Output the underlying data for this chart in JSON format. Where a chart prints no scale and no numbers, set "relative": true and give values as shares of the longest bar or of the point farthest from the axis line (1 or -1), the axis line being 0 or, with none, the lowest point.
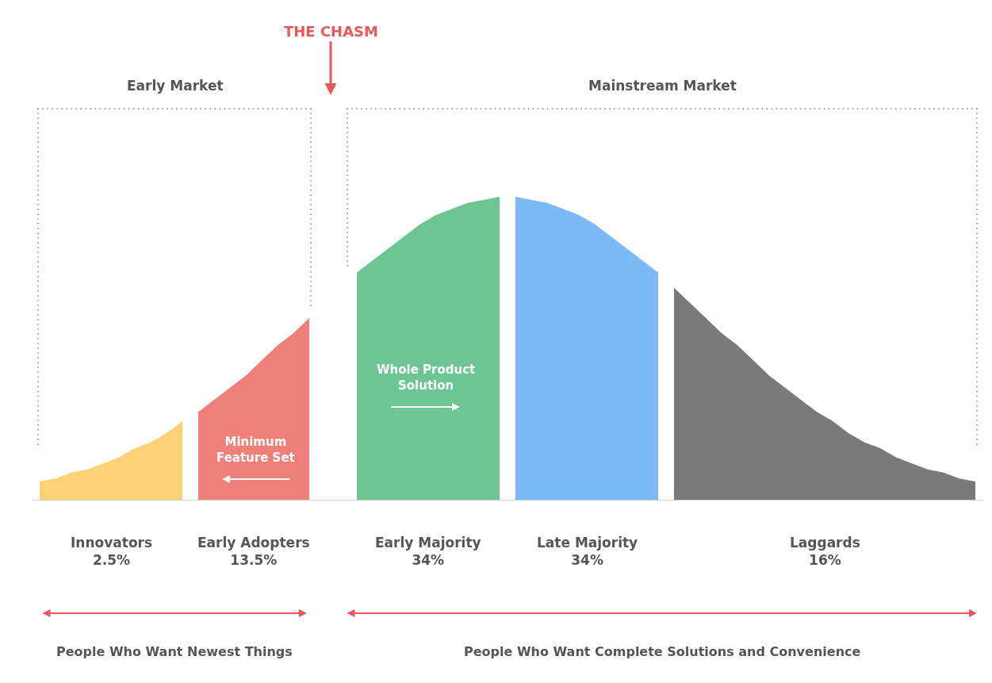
{
  "chart_data": {
    "type": "area",
    "relative": true,
    "legend": false,
    "categories": [
      null,
      null,
      null,
      null,
      null,
      null,
      null,
      null,
      null,
      null,
      null,
      null,
      null,
      null,
      null,
      null,
      null,
      null,
      null,
      null,
      null,
      null,
      null,
      null,
      null,
      null,
      null,
      null,
      null,
      null,
      null,
      null,
      null,
      null,
      null,
      null,
      null,
      null,
      null,
      null,
      null,
      null,
      null,
      null,
      null,
      null,
      null,
      null,
      null,
      null,
      null,
      null,
      null,
      null,
      null,
      null,
      null,
      null,
      null,
      null
    ],
    "series": [
      {
        "name": "Innovators\n2.5%",
        "color": "#fdd175",
        "values": [
          0.06,
          0.07,
          0.09,
          0.1,
          0.12,
          0.14,
          0.17,
          0.19,
          0.22,
          0.26,
          null,
          null,
          null,
          null,
          null,
          null,
          null,
          null,
          null,
          null,
          null,
          null,
          null,
          null,
          null,
          null,
          null,
          null,
          null,
          null,
          null,
          null,
          null,
          null,
          null,
          null,
          null,
          null,
          null,
          null,
          null,
          null,
          null,
          null,
          null,
          null,
          null,
          null,
          null,
          null,
          null,
          null,
          null,
          null,
          null,
          null,
          null,
          null,
          null,
          null
        ]
      },
      {
        "name": "Early Adopters\n13.5%",
        "color": "#ef7f79",
        "values": [
          null,
          null,
          null,
          null,
          null,
          null,
          null,
          null,
          null,
          null,
          0.29,
          0.33,
          0.37,
          0.41,
          0.46,
          0.51,
          0.55,
          0.6,
          null,
          null,
          null,
          null,
          null,
          null,
          null,
          null,
          null,
          null,
          null,
          null,
          null,
          null,
          null,
          null,
          null,
          null,
          null,
          null,
          null,
          null,
          null,
          null,
          null,
          null,
          null,
          null,
          null,
          null,
          null,
          null,
          null,
          null,
          null,
          null,
          null,
          null,
          null,
          null,
          null,
          null
        ]
      },
      {
        "name": "Early Majority\n34%",
        "color": "#6cc592",
        "values": [
          null,
          null,
          null,
          null,
          null,
          null,
          null,
          null,
          null,
          null,
          null,
          null,
          null,
          null,
          null,
          null,
          null,
          null,
          null,
          null,
          0.75,
          0.79,
          0.83,
          0.87,
          0.91,
          0.94,
          0.96,
          0.98,
          0.99,
          1,
          null,
          null,
          null,
          null,
          null,
          null,
          null,
          null,
          null,
          null,
          null,
          null,
          null,
          null,
          null,
          null,
          null,
          null,
          null,
          null,
          null,
          null,
          null,
          null,
          null,
          null,
          null,
          null,
          null,
          null
        ]
      },
      {
        "name": "Late Majority\n34%",
        "color": "#7bbaf7",
        "values": [
          null,
          null,
          null,
          null,
          null,
          null,
          null,
          null,
          null,
          null,
          null,
          null,
          null,
          null,
          null,
          null,
          null,
          null,
          null,
          null,
          null,
          null,
          null,
          null,
          null,
          null,
          null,
          null,
          null,
          null,
          1,
          0.99,
          0.98,
          0.96,
          0.94,
          0.91,
          0.87,
          0.83,
          0.79,
          0.75,
          null,
          null,
          null,
          null,
          null,
          null,
          null,
          null,
          null,
          null,
          null,
          null,
          null,
          null,
          null,
          null,
          null,
          null,
          null,
          null
        ]
      },
      {
        "name": "Laggards\n16%",
        "color": "#7a7a7a",
        "values": [
          null,
          null,
          null,
          null,
          null,
          null,
          null,
          null,
          null,
          null,
          null,
          null,
          null,
          null,
          null,
          null,
          null,
          null,
          null,
          null,
          null,
          null,
          null,
          null,
          null,
          null,
          null,
          null,
          null,
          null,
          null,
          null,
          null,
          null,
          null,
          null,
          null,
          null,
          null,
          null,
          0.7,
          0.65,
          0.6,
          0.55,
          0.51,
          0.46,
          0.41,
          0.37,
          0.33,
          0.29,
          0.26,
          0.22,
          0.19,
          0.17,
          0.14,
          0.12,
          0.1,
          0.09,
          0.07,
          0.06
        ]
      }
    ],
    "annotations": [
      "THE CHASM",
      "Early Market",
      "Mainstream Market",
      "Whole Product\nSolution",
      "Minimum\nFeature Set",
      "People Who Want Newest Things",
      "People Who Want Complete Solutions and Convenience"
    ]
  }
}
